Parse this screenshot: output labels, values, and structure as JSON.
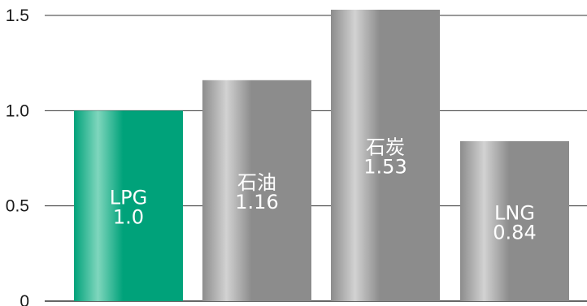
{
  "chart_data": {
    "type": "bar",
    "title": "",
    "xlabel": "",
    "ylabel": "",
    "categories": [
      "LPG",
      "石油",
      "石炭",
      "LNG"
    ],
    "values": [
      1.0,
      1.16,
      1.53,
      0.84
    ],
    "value_labels": [
      "1.0",
      "1.16",
      "1.53",
      "0.84"
    ],
    "ylim": [
      0,
      1.55
    ],
    "yticks": [
      0,
      0.5,
      1.0,
      1.5
    ],
    "ytick_labels": [
      "0",
      "0.5",
      "1.0",
      "1.5"
    ],
    "grid": true,
    "legend": "none",
    "colors": {
      "highlight": "#00a27a",
      "highlight_light": "#7fd6bd",
      "bar": "#8c8c8c",
      "bar_light": "#d2d2d2",
      "grid": "#333333",
      "label_text": "#ffffff"
    }
  }
}
